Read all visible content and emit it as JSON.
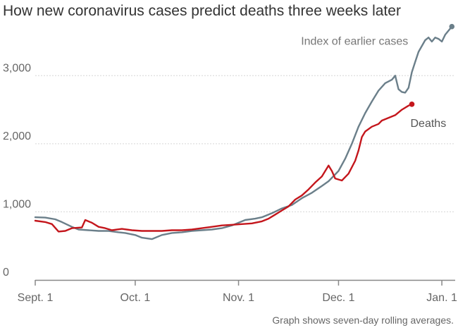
{
  "chart_data": {
    "type": "line",
    "title": "How new coronavirus cases predict deaths three weeks later",
    "footnote": "Graph shows seven-day rolling averages.",
    "xlabel": "",
    "ylabel": "",
    "x_ticks": [
      {
        "day": 0,
        "label": "Sept. 1"
      },
      {
        "day": 30,
        "label": "Oct. 1"
      },
      {
        "day": 61,
        "label": "Nov. 1"
      },
      {
        "day": 91,
        "label": "Dec. 1"
      },
      {
        "day": 122,
        "label": "Jan. 1"
      }
    ],
    "y_ticks": [
      {
        "value": 0,
        "label": "0"
      },
      {
        "value": 1000,
        "label": "1,000"
      },
      {
        "value": 2000,
        "label": "2,000"
      },
      {
        "value": 3000,
        "label": "3,000"
      }
    ],
    "xlim": [
      0,
      126
    ],
    "ylim": [
      0,
      3800
    ],
    "grid": "horizontal",
    "colors": {
      "cases": "#6b7f8a",
      "deaths": "#c4161c",
      "grid": "#d6d6d6",
      "axis": "#888888"
    },
    "series": [
      {
        "name": "Index of earlier cases",
        "key": "cases",
        "points": [
          [
            0,
            920
          ],
          [
            3,
            915
          ],
          [
            6,
            890
          ],
          [
            8,
            850
          ],
          [
            11,
            780
          ],
          [
            13,
            740
          ],
          [
            16,
            730
          ],
          [
            19,
            720
          ],
          [
            22,
            720
          ],
          [
            25,
            700
          ],
          [
            27,
            690
          ],
          [
            30,
            660
          ],
          [
            32,
            620
          ],
          [
            35,
            600
          ],
          [
            38,
            660
          ],
          [
            41,
            690
          ],
          [
            44,
            700
          ],
          [
            47,
            720
          ],
          [
            50,
            730
          ],
          [
            53,
            740
          ],
          [
            56,
            760
          ],
          [
            59,
            800
          ],
          [
            61,
            840
          ],
          [
            63,
            880
          ],
          [
            66,
            900
          ],
          [
            68,
            920
          ],
          [
            71,
            980
          ],
          [
            74,
            1050
          ],
          [
            77,
            1100
          ],
          [
            80,
            1200
          ],
          [
            83,
            1280
          ],
          [
            86,
            1380
          ],
          [
            88,
            1450
          ],
          [
            91,
            1600
          ],
          [
            93,
            1780
          ],
          [
            95,
            2000
          ],
          [
            97,
            2250
          ],
          [
            99,
            2450
          ],
          [
            101,
            2620
          ],
          [
            103,
            2780
          ],
          [
            105,
            2890
          ],
          [
            107,
            2940
          ],
          [
            108,
            3000
          ],
          [
            109,
            2800
          ],
          [
            110,
            2760
          ],
          [
            111,
            2750
          ],
          [
            112,
            2820
          ],
          [
            113,
            3050
          ],
          [
            114,
            3200
          ],
          [
            115,
            3350
          ],
          [
            117,
            3520
          ],
          [
            118,
            3560
          ],
          [
            119,
            3500
          ],
          [
            120,
            3560
          ],
          [
            121,
            3540
          ],
          [
            122,
            3500
          ],
          [
            123,
            3600
          ],
          [
            124,
            3660
          ],
          [
            125,
            3720
          ]
        ],
        "end_label": "Index of earlier cases"
      },
      {
        "name": "Deaths",
        "key": "deaths",
        "points": [
          [
            0,
            870
          ],
          [
            3,
            850
          ],
          [
            5,
            820
          ],
          [
            7,
            710
          ],
          [
            9,
            720
          ],
          [
            11,
            760
          ],
          [
            14,
            770
          ],
          [
            15,
            880
          ],
          [
            17,
            840
          ],
          [
            19,
            780
          ],
          [
            21,
            760
          ],
          [
            23,
            730
          ],
          [
            26,
            750
          ],
          [
            29,
            730
          ],
          [
            32,
            720
          ],
          [
            35,
            720
          ],
          [
            38,
            720
          ],
          [
            41,
            730
          ],
          [
            44,
            730
          ],
          [
            47,
            740
          ],
          [
            50,
            760
          ],
          [
            53,
            780
          ],
          [
            56,
            800
          ],
          [
            59,
            810
          ],
          [
            62,
            820
          ],
          [
            65,
            830
          ],
          [
            68,
            860
          ],
          [
            70,
            900
          ],
          [
            72,
            960
          ],
          [
            74,
            1020
          ],
          [
            76,
            1080
          ],
          [
            78,
            1180
          ],
          [
            80,
            1240
          ],
          [
            82,
            1330
          ],
          [
            84,
            1430
          ],
          [
            86,
            1520
          ],
          [
            88,
            1680
          ],
          [
            89,
            1600
          ],
          [
            90,
            1490
          ],
          [
            92,
            1460
          ],
          [
            94,
            1560
          ],
          [
            96,
            1750
          ],
          [
            97,
            1900
          ],
          [
            98,
            2100
          ],
          [
            99,
            2180
          ],
          [
            101,
            2250
          ],
          [
            103,
            2290
          ],
          [
            104,
            2340
          ],
          [
            106,
            2380
          ],
          [
            108,
            2420
          ],
          [
            110,
            2500
          ],
          [
            112,
            2560
          ],
          [
            113,
            2580
          ]
        ],
        "end_label": "Deaths"
      }
    ]
  }
}
